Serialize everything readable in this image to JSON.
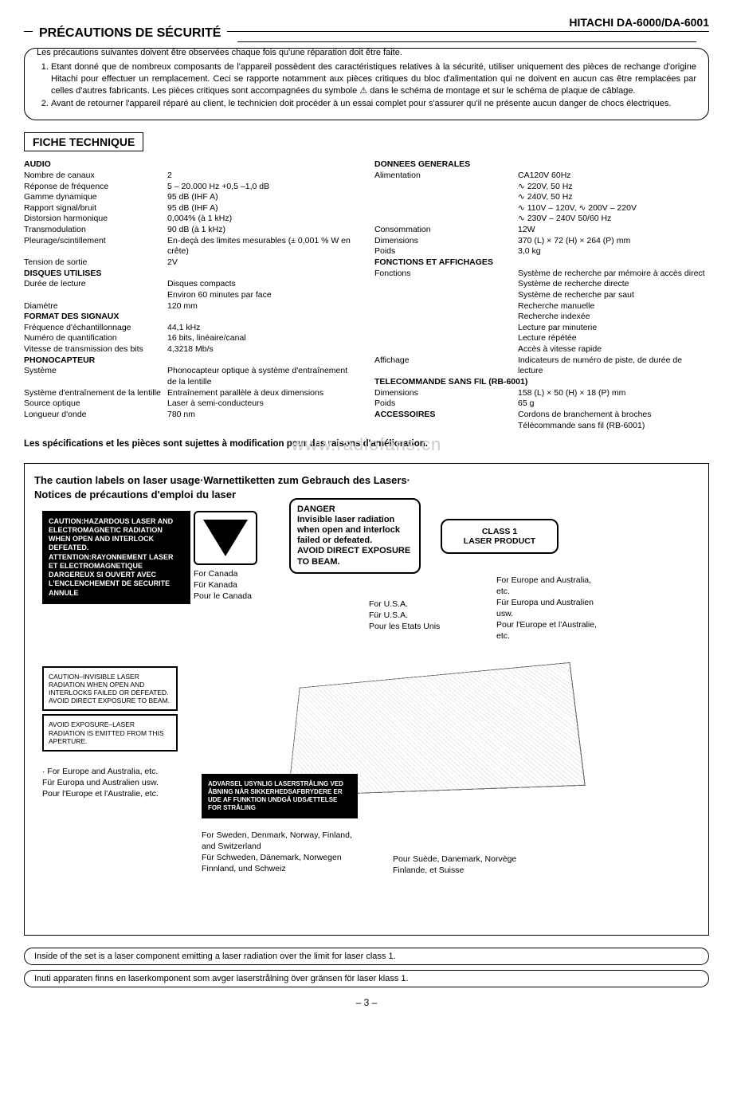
{
  "header": {
    "model": "HITACHI  DA-6000/DA-6001"
  },
  "precautions": {
    "title": "PRÉCAUTIONS DE SÉCURITÉ",
    "intro": "Les précautions suivantes doivent être observées chaque fois qu'une réparation doit être faite.",
    "items": [
      "Etant donné que de nombreux composants de l'appareil possèdent des caractéristiques relatives à la sécurité, utiliser uniquement des pièces de rechange d'origine Hitachi pour effectuer un remplacement. Ceci se rapporte notamment aux pièces critiques du bloc d'alimentation qui ne doivent en aucun cas être remplacées par celles d'autres fabricants. Les pièces critiques sont accompagnées du symbole ⚠ dans le schéma de montage et sur le schéma de plaque de câblage.",
      "Avant de retourner l'appareil réparé au client, le technicien doit procéder à un essai complet pour s'assurer qu'il ne présente aucun danger de chocs électriques."
    ]
  },
  "fiche": {
    "title": "FICHE TECHNIQUE"
  },
  "specs": {
    "left": [
      {
        "heading": "AUDIO"
      },
      {
        "label": "Nombre de canaux",
        "value": "2"
      },
      {
        "label": "Réponse de fréquence",
        "value": "5 – 20.000 Hz +0,5 –1,0 dB"
      },
      {
        "label": "Gamme dynamique",
        "value": "95 dB (IHF A)"
      },
      {
        "label": "Rapport signal/bruit",
        "value": "95 dB (IHF A)"
      },
      {
        "label": "Distorsion harmonique",
        "value": "0,004% (à 1 kHz)"
      },
      {
        "label": "Transmodulation",
        "value": "90 dB (à 1 kHz)"
      },
      {
        "label": "Pleurage/scintillement",
        "value": "En-deçà des limites mesurables (± 0,001 % W en crête)"
      },
      {
        "label": "Tension de sortie",
        "value": "2V"
      },
      {
        "heading": "DISQUES UTILISES"
      },
      {
        "label": "Durée de lecture",
        "value": "Disques compacts\nEnviron 60 minutes par face"
      },
      {
        "label": "Diamètre",
        "value": "120 mm"
      },
      {
        "heading": "FORMAT DES SIGNAUX"
      },
      {
        "label": "Fréquence d'échantillonnage",
        "value": "44,1 kHz"
      },
      {
        "label": "Numéro de quantification",
        "value": "16 bits, linéaire/canal"
      },
      {
        "label": "Vitesse de transmission des bits",
        "value": "4,3218 Mb/s"
      },
      {
        "heading": "PHONOCAPTEUR"
      },
      {
        "label": "Système",
        "value": "Phonocapteur optique à système d'entraînement de la lentille"
      },
      {
        "label": "Système d'entraînement de la lentille",
        "value": "Entraînement parallèle à deux dimensions"
      },
      {
        "label": "Source optique",
        "value": "Laser à semi-conducteurs"
      },
      {
        "label": "Longueur d'onde",
        "value": "780 nm"
      }
    ],
    "right": [
      {
        "heading": "DONNEES GENERALES"
      },
      {
        "label": "Alimentation",
        "value": "CA120V 60Hz\n∿ 220V, 50 Hz\n∿ 240V, 50 Hz\n∿ 110V – 120V, ∿ 200V – 220V\n∿ 230V – 240V 50/60 Hz"
      },
      {
        "label": "Consommation",
        "value": "12W"
      },
      {
        "label": "Dimensions",
        "value": "370 (L) × 72 (H) × 264 (P) mm"
      },
      {
        "label": "Poids",
        "value": "3,0 kg"
      },
      {
        "heading": "FONCTIONS ET AFFICHAGES"
      },
      {
        "label": "Fonctions",
        "value": "Système de recherche par mémoire à accès direct\nSystème de recherche directe\nSystème de recherche par saut\nRecherche manuelle\nRecherche indexée\nLecture par minuterie\nLecture répétée\nAccès à vitesse rapide"
      },
      {
        "label": "Affichage",
        "value": "Indicateurs de numéro de piste, de durée de lecture"
      },
      {
        "heading": "TELECOMMANDE SANS FIL (RB-6001)"
      },
      {
        "label": "Dimensions",
        "value": "158 (L) × 50 (H) × 18 (P) mm"
      },
      {
        "label": "Poids",
        "value": "65 g"
      },
      {
        "heading": "ACCESSOIRES",
        "value": "Cordons de branchement à broches\nTélécommande sans fil (RB-6001)"
      }
    ]
  },
  "modification_note": "Les spécifications et les pièces sont sujettes à modification pour des raisons d'amélioration.",
  "watermark": "www.radiofans.cn",
  "caution_panel": {
    "title": "The caution labels on laser usage·Warnettiketten zum Gebrauch des Lasers·\nNotices de précautions d'emploi du laser",
    "label_hazardous": "CAUTION:HAZARDOUS LASER AND ELECTROMAGNETIC RADIATION WHEN OPEN AND INTERLOCK DEFEATED.\nATTENTION:RAYONNEMENT LASER ET ELECTROMAGNETIQUE DARGEREUX SI OUVERT AVEC L'ENCLENCHEMENT DE SECURITE ANNULE",
    "canada": "For Canada\nFür Kanada\nPour le Canada",
    "danger": "DANGER\nInvisible laser radiation when open and interlock failed or defeated.\nAVOID DIRECT EXPOSURE TO BEAM.",
    "class1": "CLASS 1\nLASER PRODUCT",
    "usa": "For U.S.A.\nFür U.S.A.\nPour les Etats Unis",
    "europe1": "For Europe and Australia, etc.\nFür Europa und Australien usw.\nPour l'Europe et l'Australie, etc.",
    "white_caution": "CAUTION–INVISIBLE LASER RADIATION WHEN OPEN AND INTERLOCKS FAILED OR DEFEATED. AVOID DIRECT EXPOSURE TO BEAM.",
    "white_avoid": "AVOID EXPOSURE–LASER RADIATION IS EMITTED FROM THIS APERTURE.",
    "europe2": "· For Europe and Australia, etc.\nFür Europa und Australien usw.\nPour l'Europe et l'Australie, etc.",
    "advarsel": "ADVARSEL USYNLIG LASERSTRÅLING VED ÅBNING NÅR SIKKERHEDSAFBRYDERE ER UDE AF FUNKTION UNDGÅ UDSÆTTELSE FOR STRÅLING",
    "sweden": "For Sweden, Denmark, Norway, Finland, and Switzerland\nFür Schweden, Dänemark, Norwegen Finnland, und Schweiz",
    "sweden_fr": "Pour Suède, Danemark, Norvège Finlande, et Suisse"
  },
  "bottom_notes": [
    "Inside of the set is a laser component emitting a laser radiation over the limit for laser class 1.",
    "Inuti apparaten finns en laserkomponent som avger laserstrålning över gränsen för laser klass 1."
  ],
  "page_number": "– 3 –"
}
